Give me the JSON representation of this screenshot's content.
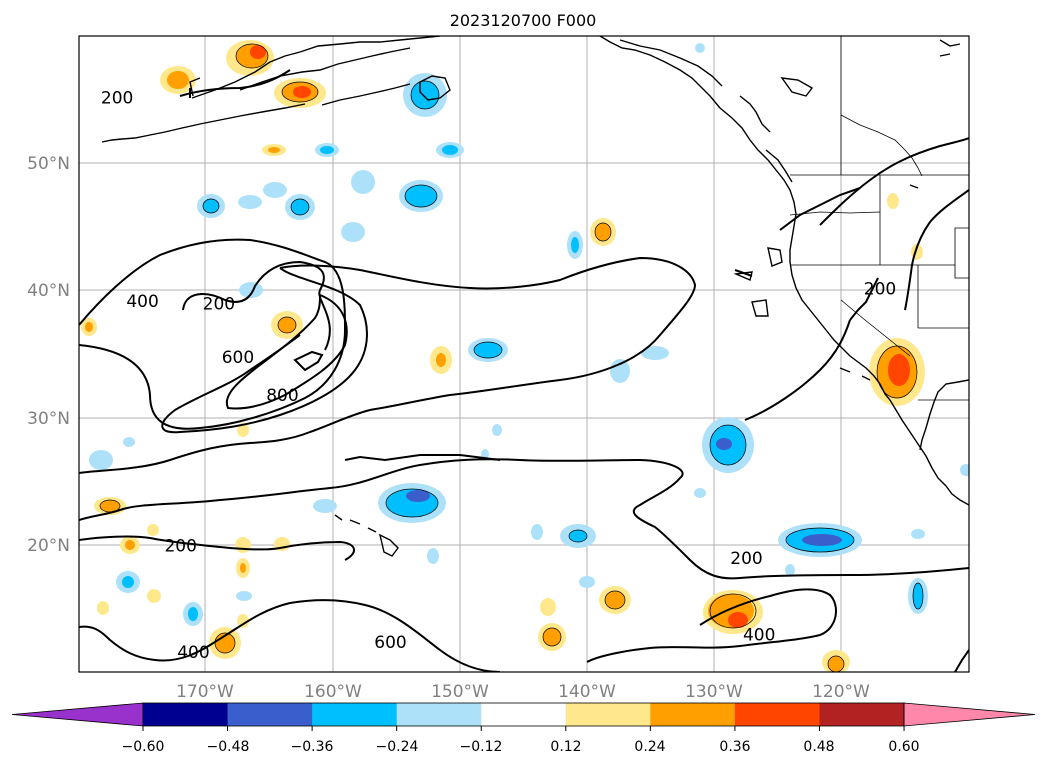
{
  "title": "2023120700 F000",
  "map": {
    "lon_labels": [
      "170°W",
      "160°W",
      "150°W",
      "140°W",
      "130°W",
      "120°W"
    ],
    "lat_labels": [
      "50°N",
      "40°N",
      "30°N",
      "20°N"
    ],
    "lon_range": [
      -180,
      -110
    ],
    "lat_range": [
      10,
      60
    ],
    "gridlines": true
  },
  "contour_labels": [
    {
      "text": "200",
      "lon": -177,
      "lat": 55
    },
    {
      "text": "400",
      "lon": -175,
      "lat": 39
    },
    {
      "text": "200",
      "lon": -169,
      "lat": 38.8
    },
    {
      "text": "600",
      "lon": -167.5,
      "lat": 34.6
    },
    {
      "text": "800",
      "lon": -164,
      "lat": 31.6
    },
    {
      "text": "200",
      "lon": -117,
      "lat": 40
    },
    {
      "text": "200",
      "lon": -172,
      "lat": 19.8
    },
    {
      "text": "200",
      "lon": -127.5,
      "lat": 18.8
    },
    {
      "text": "400",
      "lon": -171,
      "lat": 11.4
    },
    {
      "text": "600",
      "lon": -155.5,
      "lat": 12.2
    },
    {
      "text": "400",
      "lon": -126.5,
      "lat": 12.8
    }
  ],
  "colorbar": {
    "ticks": [
      "−0.60",
      "−0.48",
      "−0.36",
      "−0.24",
      "−0.12",
      "0.12",
      "0.24",
      "0.36",
      "0.48",
      "0.60"
    ],
    "colors": [
      "#9932CC",
      "#000090",
      "#3A5FCD",
      "#00BFFF",
      "#ADE1FA",
      "#FFFFFF",
      "#FFE88C",
      "#FFA000",
      "#FF4500",
      "#B22222",
      "#FF88AA"
    ]
  }
}
